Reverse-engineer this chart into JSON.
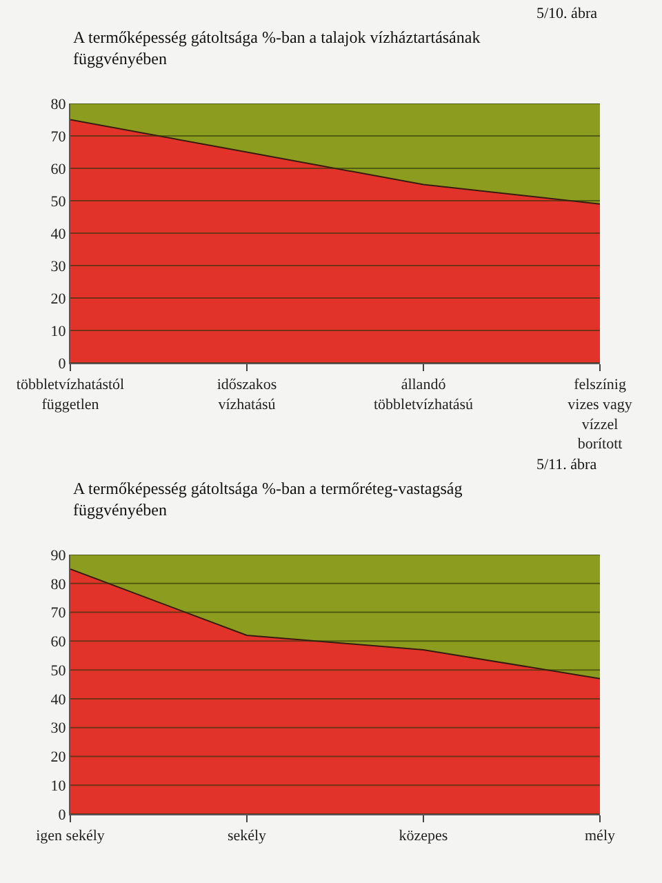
{
  "chart_data": [
    {
      "type": "area",
      "title": "A termőképesség gátoltsága %-ban a talajok vízháztartásának függvényében",
      "annotations": [
        "5/10. ábra"
      ],
      "categories": [
        "többletvízhatástól független",
        "időszakos vízhatású",
        "állandó többletvízhatású",
        "felszínig vizes vagy vízzel borított"
      ],
      "stacked": true,
      "series": [
        {
          "color": "#e2332a",
          "values": [
            75,
            65,
            55,
            49
          ]
        },
        {
          "color": "#8c9c1e",
          "values": [
            5,
            15,
            25,
            31
          ]
        }
      ],
      "ylim": [
        0,
        80
      ],
      "yticks": [
        0,
        10,
        20,
        30,
        40,
        50,
        60,
        70,
        80
      ],
      "grid": "y"
    },
    {
      "type": "area",
      "title": "A termőképesség gátoltsága %-ban a termőréteg-vastagság függvényében",
      "annotations": [
        "5/11. ábra"
      ],
      "categories": [
        "igen sekély",
        "sekély",
        "közepes",
        "mély"
      ],
      "stacked": true,
      "series": [
        {
          "color": "#e2332a",
          "values": [
            85,
            62,
            57,
            47
          ]
        },
        {
          "color": "#8c9c1e",
          "values": [
            5,
            28,
            33,
            43
          ]
        }
      ],
      "ylim": [
        0,
        90
      ],
      "yticks": [
        0,
        10,
        20,
        30,
        40,
        50,
        60,
        70,
        80,
        90
      ],
      "grid": "y"
    }
  ]
}
